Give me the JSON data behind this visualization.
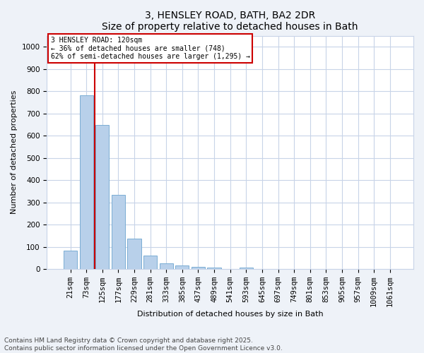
{
  "title1": "3, HENSLEY ROAD, BATH, BA2 2DR",
  "title2": "Size of property relative to detached houses in Bath",
  "xlabel": "Distribution of detached houses by size in Bath",
  "ylabel": "Number of detached properties",
  "bar_labels": [
    "21sqm",
    "73sqm",
    "125sqm",
    "177sqm",
    "229sqm",
    "281sqm",
    "333sqm",
    "385sqm",
    "437sqm",
    "489sqm",
    "541sqm",
    "593sqm",
    "645sqm",
    "697sqm",
    "749sqm",
    "801sqm",
    "853sqm",
    "905sqm",
    "957sqm",
    "1009sqm",
    "1061sqm"
  ],
  "bar_values": [
    83,
    783,
    648,
    335,
    135,
    60,
    24,
    17,
    10,
    6,
    0,
    7,
    0,
    0,
    0,
    0,
    0,
    0,
    0,
    0,
    0
  ],
  "bar_color": "#b8d0ea",
  "bar_edge_color": "#7aadd4",
  "vline_x_index": 2,
  "vline_color": "#cc0000",
  "annotation_title": "3 HENSLEY ROAD: 120sqm",
  "annotation_line1": "← 36% of detached houses are smaller (748)",
  "annotation_line2": "62% of semi-detached houses are larger (1,295) →",
  "annotation_box_color": "#ffffff",
  "annotation_box_edge_color": "#cc0000",
  "ylim": [
    0,
    1050
  ],
  "yticks": [
    0,
    100,
    200,
    300,
    400,
    500,
    600,
    700,
    800,
    900,
    1000
  ],
  "footnote1": "Contains HM Land Registry data © Crown copyright and database right 2025.",
  "footnote2": "Contains public sector information licensed under the Open Government Licence v3.0.",
  "bg_color": "#eef2f8",
  "plot_bg_color": "#ffffff",
  "grid_color": "#c8d4e8",
  "title_fontsize": 10,
  "axis_label_fontsize": 8,
  "tick_fontsize": 7.5,
  "footnote_fontsize": 6.5
}
